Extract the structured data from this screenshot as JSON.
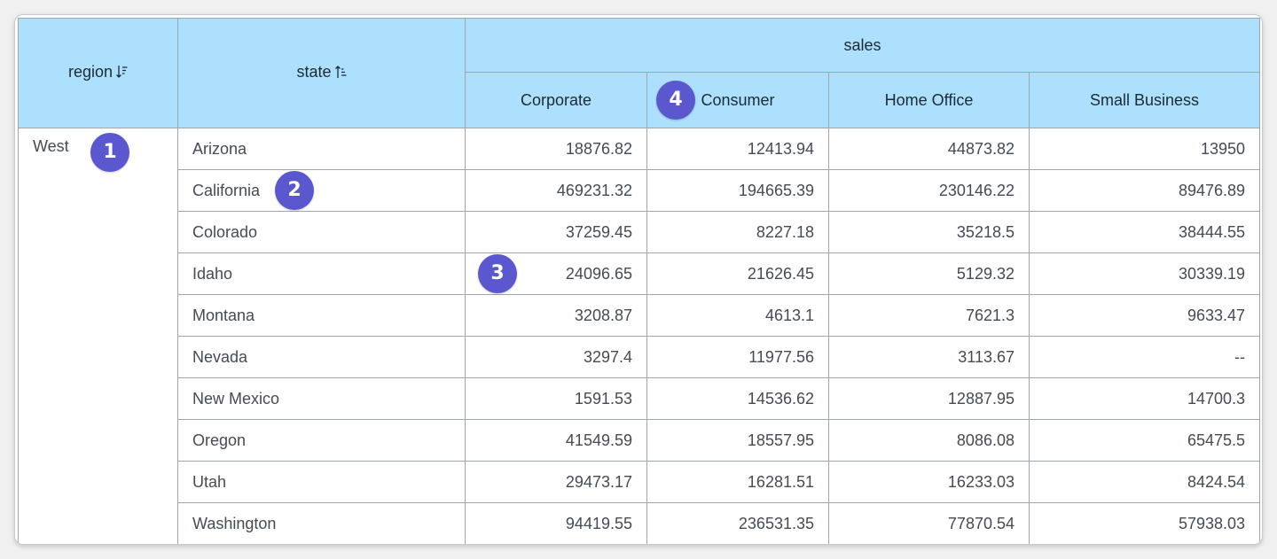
{
  "table": {
    "header": {
      "region_label": "region",
      "state_label": "state",
      "measure_label": "sales",
      "columns": [
        "Corporate",
        "Consumer",
        "Home Office",
        "Small Business"
      ],
      "region_sort_icon": "sort-descending-icon",
      "state_sort_icon": "sort-ascending-icon"
    },
    "region": "West",
    "rows": [
      {
        "state": "Arizona",
        "values": [
          "18876.82",
          "12413.94",
          "44873.82",
          "13950"
        ]
      },
      {
        "state": "California",
        "values": [
          "469231.32",
          "194665.39",
          "230146.22",
          "89476.89"
        ]
      },
      {
        "state": "Colorado",
        "values": [
          "37259.45",
          "8227.18",
          "35218.5",
          "38444.55"
        ]
      },
      {
        "state": "Idaho",
        "values": [
          "24096.65",
          "21626.45",
          "5129.32",
          "30339.19"
        ]
      },
      {
        "state": "Montana",
        "values": [
          "3208.87",
          "4613.1",
          "7621.3",
          "9633.47"
        ]
      },
      {
        "state": "Nevada",
        "values": [
          "3297.4",
          "11977.56",
          "3113.67",
          "--"
        ]
      },
      {
        "state": "New Mexico",
        "values": [
          "1591.53",
          "14536.62",
          "12887.95",
          "14700.3"
        ]
      },
      {
        "state": "Oregon",
        "values": [
          "41549.59",
          "18557.95",
          "8086.08",
          "65475.5"
        ]
      },
      {
        "state": "Utah",
        "values": [
          "29473.17",
          "16281.51",
          "16233.03",
          "8424.54"
        ]
      },
      {
        "state": "Washington",
        "values": [
          "94419.55",
          "236531.35",
          "77870.54",
          "57938.03"
        ]
      }
    ]
  },
  "callouts": [
    "1",
    "2",
    "3",
    "4"
  ],
  "colors": {
    "header_bg": "#ace0fc",
    "border": "#9fa6ae",
    "badge": "#5b57cf"
  }
}
